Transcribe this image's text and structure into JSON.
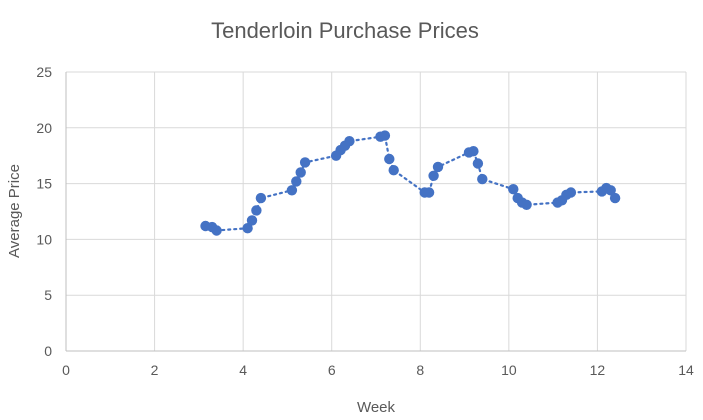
{
  "chart_data": {
    "type": "scatter",
    "title": "Tenderloin Purchase Prices",
    "xlabel": "Week",
    "ylabel": "Average Price",
    "xlim": [
      0,
      14
    ],
    "ylim": [
      0,
      25
    ],
    "xticks": [
      0,
      2,
      4,
      6,
      8,
      10,
      12,
      14
    ],
    "yticks": [
      0,
      5,
      10,
      15,
      20,
      25
    ],
    "grid": true,
    "legend": "none",
    "series_color": "#4472c4",
    "series": [
      {
        "points": [
          {
            "x": 3.15,
            "y": 11.2
          },
          {
            "x": 3.3,
            "y": 11.1
          },
          {
            "x": 3.4,
            "y": 10.8
          },
          {
            "x": 4.1,
            "y": 11.0
          },
          {
            "x": 4.2,
            "y": 11.7
          },
          {
            "x": 4.3,
            "y": 12.6
          },
          {
            "x": 4.4,
            "y": 13.7
          },
          {
            "x": 5.1,
            "y": 14.4
          },
          {
            "x": 5.2,
            "y": 15.2
          },
          {
            "x": 5.3,
            "y": 16.0
          },
          {
            "x": 5.4,
            "y": 16.9
          },
          {
            "x": 6.1,
            "y": 17.5
          },
          {
            "x": 6.2,
            "y": 18.0
          },
          {
            "x": 6.3,
            "y": 18.4
          },
          {
            "x": 6.4,
            "y": 18.8
          },
          {
            "x": 7.1,
            "y": 19.2
          },
          {
            "x": 7.2,
            "y": 19.3
          },
          {
            "x": 7.3,
            "y": 17.2
          },
          {
            "x": 7.4,
            "y": 16.2
          },
          {
            "x": 8.1,
            "y": 14.2
          },
          {
            "x": 8.2,
            "y": 14.2
          },
          {
            "x": 8.3,
            "y": 15.7
          },
          {
            "x": 8.4,
            "y": 16.5
          },
          {
            "x": 9.1,
            "y": 17.8
          },
          {
            "x": 9.2,
            "y": 17.9
          },
          {
            "x": 9.3,
            "y": 16.8
          },
          {
            "x": 9.4,
            "y": 15.4
          },
          {
            "x": 10.1,
            "y": 14.5
          },
          {
            "x": 10.2,
            "y": 13.7
          },
          {
            "x": 10.3,
            "y": 13.3
          },
          {
            "x": 10.4,
            "y": 13.1
          },
          {
            "x": 11.1,
            "y": 13.3
          },
          {
            "x": 11.2,
            "y": 13.5
          },
          {
            "x": 11.3,
            "y": 14.0
          },
          {
            "x": 11.4,
            "y": 14.2
          },
          {
            "x": 12.1,
            "y": 14.3
          },
          {
            "x": 12.2,
            "y": 14.6
          },
          {
            "x": 12.3,
            "y": 14.4
          },
          {
            "x": 12.4,
            "y": 13.7
          }
        ]
      }
    ]
  }
}
